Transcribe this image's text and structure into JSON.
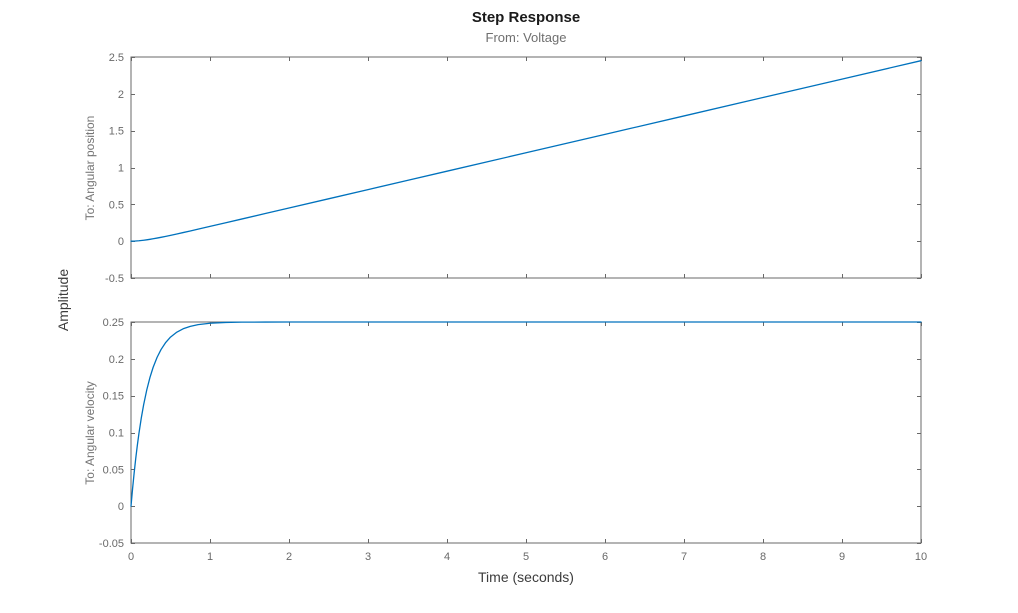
{
  "title": "Step Response",
  "subtitle": "From: Voltage",
  "xlabel": "Time (seconds)",
  "ylabel": "Amplitude",
  "colors": {
    "line": "#0072BD",
    "axis": "#686868",
    "tick_label": "#696969",
    "channel_label": "#757575",
    "subtitle": "#6f6f6f",
    "title": "#1a1a1a",
    "axes_label": "#3c3c3c",
    "background": "#ffffff"
  },
  "chart_data": [
    {
      "type": "line",
      "name": "angular-position-step-response",
      "row_label": "To: Angular position",
      "xlim": [
        0,
        10
      ],
      "ylim": [
        -0.5,
        2.5
      ],
      "xticks": [
        0,
        1,
        2,
        3,
        4,
        5,
        6,
        7,
        8,
        9,
        10
      ],
      "yticks": [
        -0.5,
        0,
        0.5,
        1,
        1.5,
        2,
        2.5
      ],
      "show_x_tick_labels": false,
      "grid": false,
      "legend": "none",
      "x": [
        0,
        0.02,
        0.04,
        0.06,
        0.08,
        0.1,
        0.13,
        0.16,
        0.2,
        0.24,
        0.28,
        0.33,
        0.38,
        0.44,
        0.5,
        0.58,
        0.66,
        0.75,
        0.85,
        1,
        1.2,
        1.4,
        1.7,
        2,
        2.5,
        3,
        3.5,
        4,
        5,
        6,
        7,
        8,
        9,
        10
      ],
      "y": [
        0,
        0.0002,
        0.0009,
        0.002,
        0.0035,
        0.0053,
        0.0086,
        0.0125,
        0.0184,
        0.0251,
        0.0323,
        0.0421,
        0.0525,
        0.0655,
        0.0791,
        0.0978,
        0.1168,
        0.1387,
        0.1632,
        0.2003,
        0.2501,
        0.3,
        0.375,
        0.45,
        0.575,
        0.7,
        0.825,
        0.95,
        1.2,
        1.45,
        1.7,
        1.95,
        2.2,
        2.45
      ]
    },
    {
      "type": "line",
      "name": "angular-velocity-step-response",
      "row_label": "To: Angular velocity",
      "xlim": [
        0,
        10
      ],
      "ylim": [
        -0.05,
        0.25
      ],
      "xticks": [
        0,
        1,
        2,
        3,
        4,
        5,
        6,
        7,
        8,
        9,
        10
      ],
      "yticks": [
        -0.05,
        0,
        0.05,
        0.1,
        0.15,
        0.2,
        0.25
      ],
      "show_x_tick_labels": true,
      "grid": false,
      "legend": "none",
      "x": [
        0,
        0.02,
        0.04,
        0.06,
        0.08,
        0.1,
        0.13,
        0.16,
        0.2,
        0.24,
        0.28,
        0.33,
        0.38,
        0.44,
        0.5,
        0.58,
        0.66,
        0.75,
        0.85,
        1,
        1.2,
        1.4,
        1.7,
        2,
        2.5,
        3,
        3.5,
        4,
        5,
        6,
        7,
        8,
        9,
        10
      ],
      "y": [
        0,
        0.0238,
        0.0453,
        0.0648,
        0.0824,
        0.0984,
        0.1195,
        0.1377,
        0.158,
        0.1747,
        0.1884,
        0.202,
        0.2126,
        0.2223,
        0.2295,
        0.2362,
        0.2408,
        0.2441,
        0.2464,
        0.2483,
        0.2494,
        0.2498,
        0.2499,
        0.25,
        0.25,
        0.25,
        0.25,
        0.25,
        0.25,
        0.25,
        0.25,
        0.25,
        0.25,
        0.25
      ]
    }
  ]
}
